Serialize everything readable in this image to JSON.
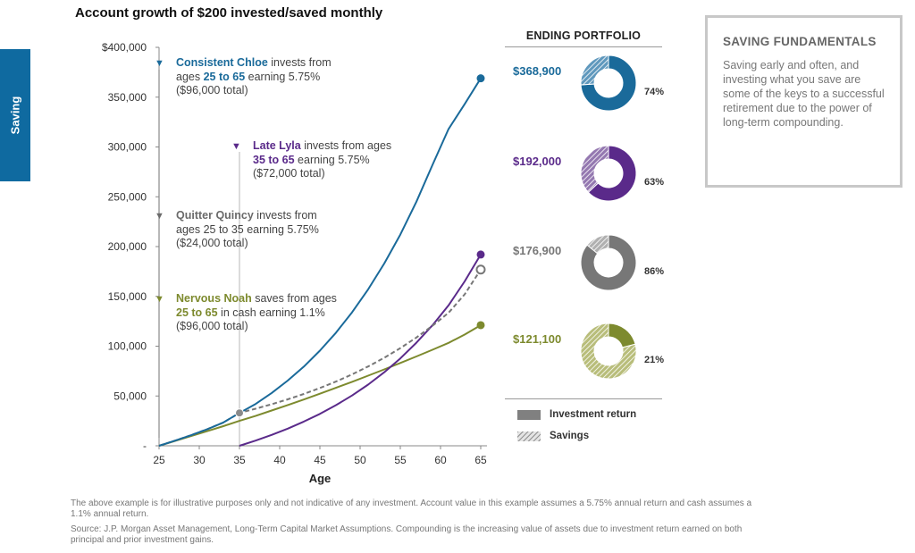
{
  "page": {
    "side_tab": "Saving",
    "title": "Account growth of $200 invested/saved monthly"
  },
  "chart_data": {
    "type": "line",
    "title": "Account growth of $200 invested/saved monthly",
    "xlabel": "Age",
    "ylabel": "",
    "x_ticks": [
      25,
      30,
      35,
      40,
      45,
      50,
      55,
      60,
      65
    ],
    "y_ticks": [
      0,
      50000,
      100000,
      150000,
      200000,
      250000,
      300000,
      350000,
      400000
    ],
    "y_tick_labels": [
      "-",
      "50,000",
      "100,000",
      "150,000",
      "200,000",
      "250,000",
      "300,000",
      "350,000",
      "$400,000"
    ],
    "xlim": [
      25,
      65
    ],
    "ylim": [
      0,
      400000
    ],
    "grid": false,
    "series": [
      {
        "name": "Consistent Chloe",
        "color": "#1a6a9a",
        "dash": false,
        "end_marker": "filled",
        "x": [
          25,
          27,
          29,
          31,
          33,
          35,
          37,
          39,
          41,
          43,
          45,
          47,
          49,
          51,
          53,
          55,
          57,
          59,
          61,
          63,
          65
        ],
        "y": [
          0,
          5200,
          10700,
          16700,
          23400,
          33000,
          42000,
          53000,
          65500,
          79500,
          95500,
          113500,
          134000,
          157000,
          183000,
          212000,
          245000,
          282000,
          318000,
          343000,
          368900
        ]
      },
      {
        "name": "Late Lyla",
        "color": "#5a2a8a",
        "dash": false,
        "end_marker": "filled",
        "x": [
          35,
          37,
          39,
          41,
          43,
          45,
          47,
          49,
          51,
          53,
          55,
          57,
          59,
          61,
          63,
          65
        ],
        "y": [
          0,
          5200,
          10900,
          17200,
          24300,
          32000,
          40800,
          50500,
          61400,
          73800,
          87700,
          103500,
          121000,
          141000,
          165000,
          192000
        ]
      },
      {
        "name": "Quitter Quincy",
        "color": "#777777",
        "dash": true,
        "end_marker": "open",
        "x": [
          25,
          27,
          29,
          31,
          33,
          35,
          37,
          39,
          41,
          43,
          45,
          47,
          49,
          51,
          53,
          55,
          57,
          59,
          61,
          63,
          65
        ],
        "y": [
          0,
          5200,
          10700,
          16700,
          23400,
          33000,
          37200,
          41700,
          46600,
          52000,
          58000,
          64500,
          71700,
          79600,
          88300,
          98000,
          108700,
          120500,
          133500,
          152000,
          176900
        ]
      },
      {
        "name": "Nervous Noah",
        "color": "#7d8a2e",
        "dash": false,
        "end_marker": "filled",
        "x": [
          25,
          27,
          29,
          31,
          33,
          35,
          37,
          39,
          41,
          43,
          45,
          47,
          49,
          51,
          53,
          55,
          57,
          59,
          61,
          63,
          65
        ],
        "y": [
          0,
          4850,
          9750,
          14700,
          19700,
          25000,
          30000,
          35400,
          40900,
          46500,
          52300,
          58200,
          64200,
          70400,
          76700,
          83100,
          89700,
          96400,
          103300,
          111700,
          121100
        ]
      }
    ],
    "start_marker": {
      "x": 35,
      "y": 33000
    }
  },
  "annotations": [
    {
      "name": "Consistent Chloe",
      "color": "#1a6a9a",
      "line1_pre": "",
      "line1_bold": "Consistent Chloe",
      "line1_post": " invests from",
      "line2_pre": "ages ",
      "line2_bold": "25 to 65",
      "line2_post": " earning 5.75%",
      "line3": "($96,000 total)"
    },
    {
      "name": "Late Lyla",
      "color": "#5a2a8a",
      "line1_pre": "",
      "line1_bold": "Late Lyla",
      "line1_post": " invests from ages",
      "line2_pre": "",
      "line2_bold": "35 to 65",
      "line2_post": " earning 5.75%",
      "line3": "($72,000 total)"
    },
    {
      "name": "Quitter Quincy",
      "color": "#6a6a6a",
      "line1_pre": "",
      "line1_bold": "Quitter Quincy",
      "line1_post": " invests from",
      "line2_pre": "ages 25 to 35 earning 5.75%",
      "line2_bold": "",
      "line2_post": "",
      "line3": "($24,000 total)"
    },
    {
      "name": "Nervous Noah",
      "color": "#7d8a2e",
      "line1_pre": "",
      "line1_bold": "Nervous Noah",
      "line1_post": " saves from ages",
      "line2_pre": "",
      "line2_bold": "25 to 65",
      "line2_post": " in cash earning 1.1%",
      "line3": "($96,000 total)"
    }
  ],
  "portfolio": {
    "header": "ENDING PORTFOLIO",
    "rows": [
      {
        "value": "$368,900",
        "color": "#1a6a9a",
        "light": "#5f98bd",
        "investment_fraction": 0.74,
        "pct": "74%"
      },
      {
        "value": "$192,000",
        "color": "#5a2a8a",
        "light": "#9478b0",
        "investment_fraction": 0.63,
        "pct": "63%"
      },
      {
        "value": "$176,900",
        "color": "#777777",
        "light": "#b0b0b0",
        "investment_fraction": 0.86,
        "pct": "86%"
      },
      {
        "value": "$121,100",
        "color": "#7d8a2e",
        "light": "#b8bd7a",
        "investment_fraction": 0.21,
        "pct": "21%"
      }
    ],
    "legend": [
      {
        "label": "Investment return",
        "style": "solid"
      },
      {
        "label": "Savings",
        "style": "hatched"
      }
    ]
  },
  "fundamentals": {
    "title": "SAVING FUNDAMENTALS",
    "body": "Saving early and often, and investing what you save are some of the keys to a successful retirement due to the power of long-term compounding."
  },
  "footnotes": {
    "note1": "The above example  is for illustrative purposes only and not indicative of any investment. Account value in this example  assumes  a 5.75% annual return and cash assumes  a 1.1% annual return.",
    "note2": "Source: J.P. Morgan Asset Management,  Long-Term Capital Market Assumptions.  Compounding  is the increasing value of assets due to investment return earned on both principal and prior investment  gains."
  }
}
